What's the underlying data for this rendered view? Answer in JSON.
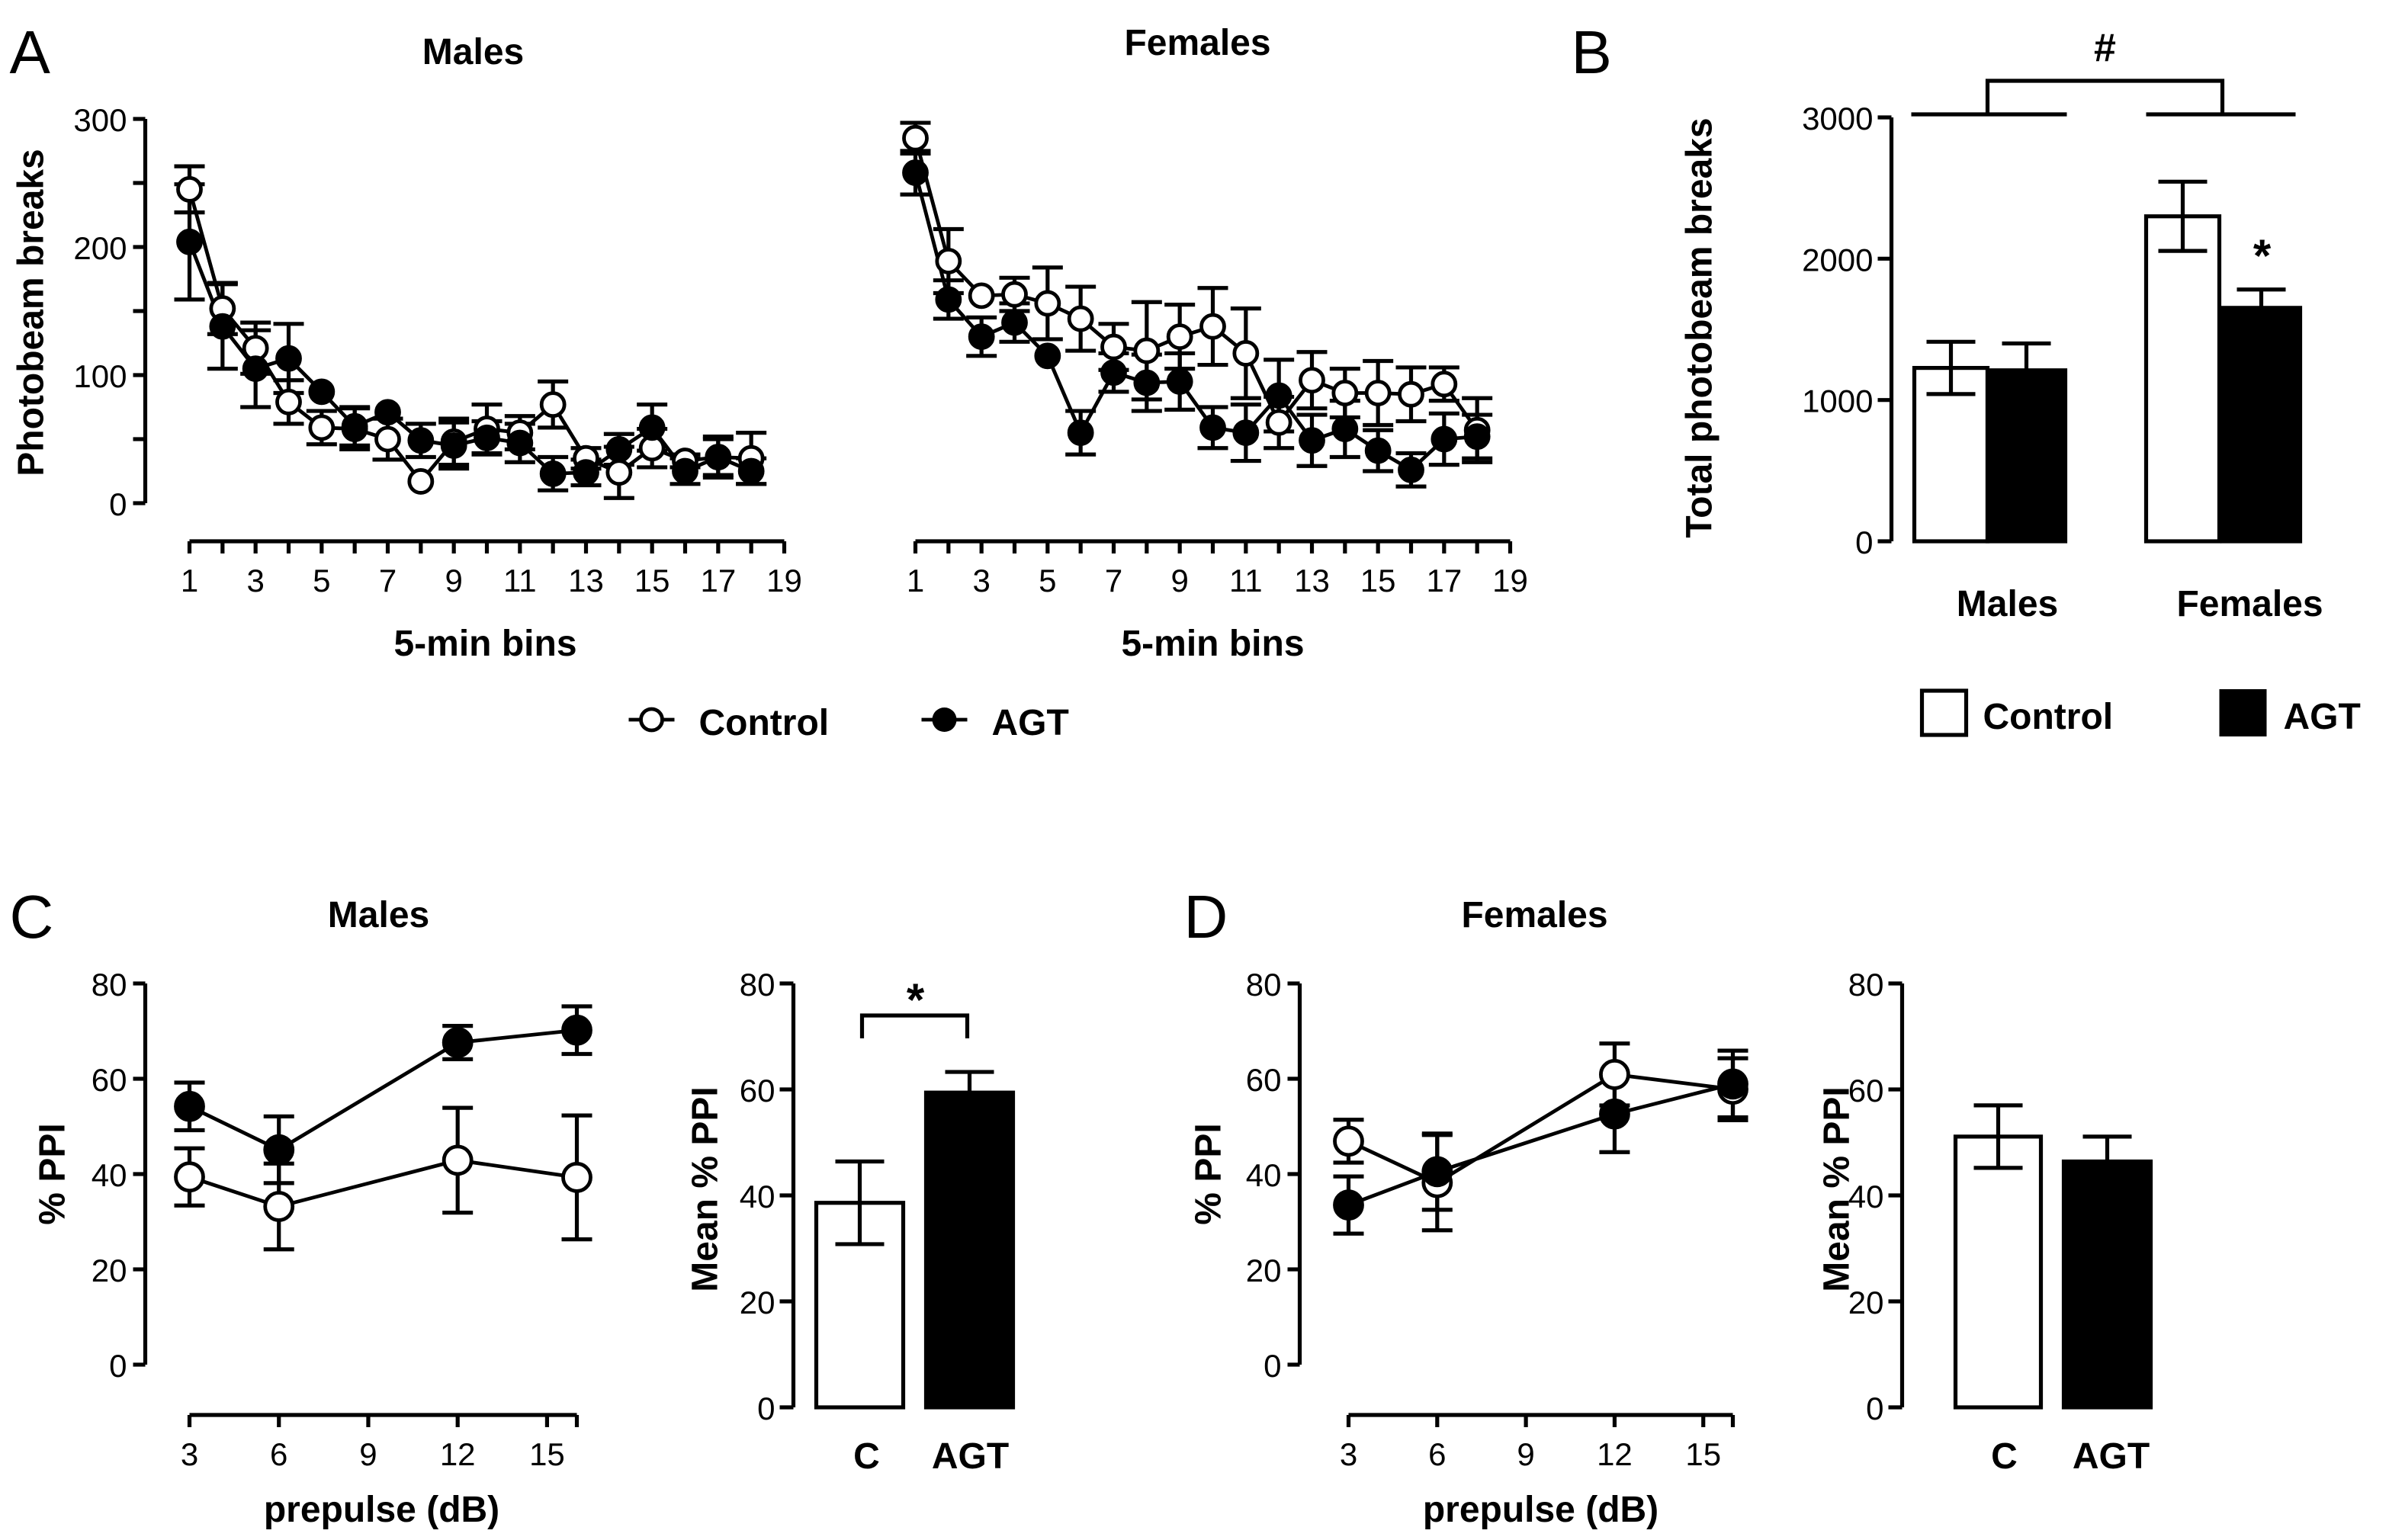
{
  "figure": {
    "panel_letters": [
      "A",
      "B",
      "C",
      "D"
    ],
    "legend_A": {
      "control": "Control",
      "agt": "AGT"
    },
    "legend_B": {
      "control": "Control",
      "agt": "AGT"
    },
    "colors": {
      "control_fill": "#ffffff",
      "agt_fill": "#000000",
      "stroke": "#000000"
    }
  },
  "chart_data": [
    {
      "id": "A_males",
      "type": "line",
      "title": "Males",
      "xlabel": "5-min bins",
      "ylabel": "Photobeam breaks",
      "xlim": [
        1,
        19
      ],
      "ylim": [
        0,
        300
      ],
      "xticks": [
        "1",
        "3",
        "5",
        "7",
        "9",
        "11",
        "13",
        "15",
        "17",
        "19"
      ],
      "yticks": [
        "0",
        "100",
        "200",
        "300"
      ],
      "x": [
        1,
        2,
        3,
        4,
        5,
        6,
        7,
        8,
        9,
        10,
        11,
        12,
        13,
        14,
        15,
        16,
        17,
        18
      ],
      "series": [
        {
          "name": "Control",
          "marker": "open-circle",
          "values": [
            245,
            152,
            121,
            79,
            59,
            58,
            50,
            17,
            48,
            58,
            55,
            77,
            35,
            24,
            43,
            33,
            36,
            35
          ],
          "sem": [
            18,
            20,
            20,
            17,
            13,
            16,
            16,
            0,
            18,
            19,
            13,
            18,
            8,
            20,
            15,
            5,
            16,
            20
          ]
        },
        {
          "name": "AGT",
          "marker": "filled-circle",
          "values": [
            204,
            138,
            105,
            113,
            87,
            60,
            71,
            49,
            45,
            51,
            47,
            23,
            24,
            42,
            59,
            25,
            36,
            25
          ],
          "sem": [
            45,
            33,
            30,
            27,
            0,
            15,
            0,
            13,
            18,
            13,
            15,
            13,
            10,
            12,
            18,
            10,
            14,
            10
          ]
        }
      ]
    },
    {
      "id": "A_females",
      "type": "line",
      "title": "Females",
      "xlabel": "5-min bins",
      "ylabel": "",
      "xlim": [
        1,
        19
      ],
      "ylim": [
        0,
        300
      ],
      "xticks": [
        "1",
        "3",
        "5",
        "7",
        "9",
        "11",
        "13",
        "15",
        "17",
        "19"
      ],
      "x": [
        1,
        2,
        3,
        4,
        5,
        6,
        7,
        8,
        9,
        10,
        11,
        12,
        13,
        14,
        15,
        16,
        17,
        18
      ],
      "series": [
        {
          "name": "Control",
          "marker": "open-circle",
          "values": [
            285,
            189,
            162,
            163,
            156,
            144,
            122,
            119,
            130,
            138,
            117,
            63,
            96,
            86,
            86,
            85,
            93,
            57
          ],
          "sem": [
            12,
            25,
            0,
            13,
            28,
            25,
            18,
            38,
            25,
            30,
            35,
            20,
            22,
            19,
            25,
            21,
            13,
            25
          ]
        },
        {
          "name": "AGT",
          "marker": "filled-circle",
          "values": [
            258,
            159,
            130,
            141,
            115,
            55,
            102,
            94,
            95,
            59,
            55,
            84,
            49,
            58,
            41,
            26,
            50,
            52
          ],
          "sem": [
            17,
            15,
            15,
            15,
            0,
            17,
            15,
            22,
            22,
            16,
            22,
            28,
            20,
            22,
            16,
            13,
            20,
            17
          ]
        }
      ]
    },
    {
      "id": "B",
      "type": "bar",
      "title": "",
      "xlabel": "",
      "ylabel": "Total photobeam breaks",
      "ylim": [
        0,
        3000
      ],
      "yticks": [
        "0",
        "1000",
        "2000",
        "3000"
      ],
      "categories": [
        "Males",
        "Females"
      ],
      "series": [
        {
          "name": "Control",
          "values": [
            1227,
            2300
          ],
          "sem": [
            185,
            245
          ]
        },
        {
          "name": "AGT",
          "values": [
            1210,
            1652
          ],
          "sem": [
            190,
            130
          ]
        }
      ],
      "annotations": {
        "sex_effect": "#",
        "females_agt": "*"
      }
    },
    {
      "id": "C_line",
      "type": "line",
      "title": "Males",
      "xlabel": "prepulse (dB)",
      "ylabel": "% PPI",
      "xlim": [
        3,
        16
      ],
      "ylim": [
        0,
        80
      ],
      "xticks": [
        "3",
        "6",
        "9",
        "12",
        "15"
      ],
      "yticks": [
        "0",
        "20",
        "40",
        "60",
        "80"
      ],
      "x": [
        3,
        6,
        12,
        16
      ],
      "series": [
        {
          "name": "Control",
          "marker": "open-circle",
          "values": [
            39.4,
            33.2,
            42.9,
            39.3
          ],
          "sem": [
            6,
            9,
            11,
            13
          ]
        },
        {
          "name": "AGT",
          "marker": "filled-circle",
          "values": [
            54.2,
            45.1,
            67.6,
            70.2
          ],
          "sem": [
            5,
            7,
            3.5,
            5
          ]
        }
      ]
    },
    {
      "id": "C_bar",
      "type": "bar",
      "title": "",
      "xlabel": "",
      "ylabel": "Mean % PPI",
      "ylim": [
        0,
        80
      ],
      "yticks": [
        "0",
        "20",
        "40",
        "60",
        "80"
      ],
      "categories": [
        "C",
        "AGT"
      ],
      "values": [
        38.6,
        59.4
      ],
      "sem": [
        7.8,
        3.9
      ],
      "annotations": {
        "comparison": "*"
      }
    },
    {
      "id": "D_line",
      "type": "line",
      "title": "Females",
      "xlabel": "prepulse (dB)",
      "ylabel": "% PPI",
      "xlim": [
        3,
        16
      ],
      "ylim": [
        0,
        80
      ],
      "xticks": [
        "3",
        "6",
        "9",
        "12",
        "15"
      ],
      "yticks": [
        "0",
        "20",
        "40",
        "60",
        "80"
      ],
      "x": [
        3,
        6,
        12,
        16
      ],
      "series": [
        {
          "name": "Control",
          "marker": "open-circle",
          "values": [
            46.9,
            38.2,
            60.9,
            57.8
          ],
          "sem": [
            4.5,
            10,
            6.5,
            6.5
          ]
        },
        {
          "name": "AGT",
          "marker": "filled-circle",
          "values": [
            33.5,
            40.5,
            52.6,
            58.9
          ],
          "sem": [
            6,
            8,
            8,
            7
          ]
        }
      ]
    },
    {
      "id": "D_bar",
      "type": "bar",
      "title": "",
      "xlabel": "",
      "ylabel": "Mean % PPI",
      "ylim": [
        0,
        80
      ],
      "yticks": [
        "0",
        "20",
        "40",
        "60",
        "80"
      ],
      "categories": [
        "C",
        "AGT"
      ],
      "values": [
        51.1,
        46.4
      ],
      "sem": [
        5.9,
        4.7
      ]
    }
  ]
}
